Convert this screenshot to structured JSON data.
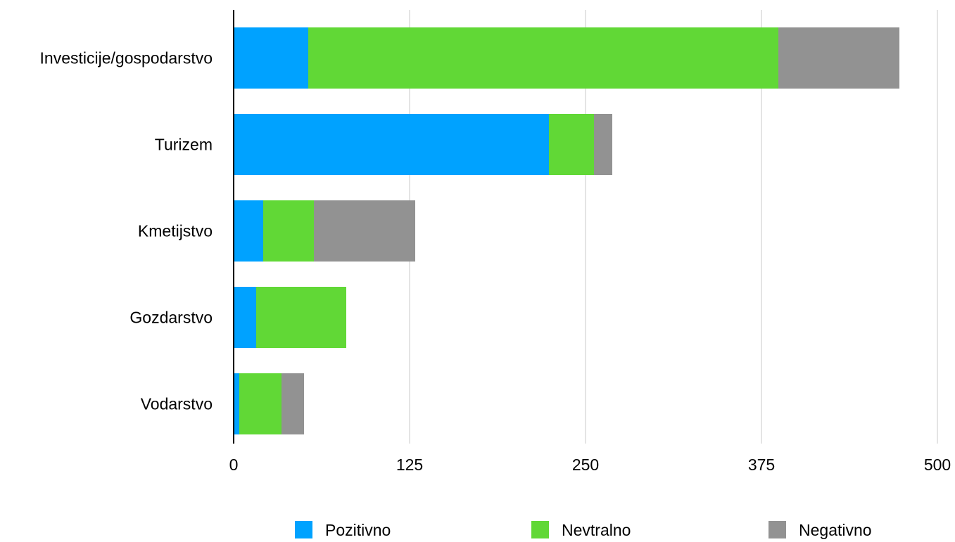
{
  "chart_data": {
    "type": "bar",
    "orientation": "horizontal",
    "stacked": true,
    "title": "",
    "xlabel": "",
    "ylabel": "",
    "categories": [
      "Investicije/gospodarstvo",
      "Turizem",
      "Kmetijstvo",
      "Gozdarstvo",
      "Vodarstvo"
    ],
    "series": [
      {
        "name": "Pozitivno",
        "color": "#00a2ff",
        "values": [
          53,
          224,
          21,
          16,
          4
        ]
      },
      {
        "name": "Nevtralno",
        "color": "#61d836",
        "values": [
          334,
          32,
          36,
          64,
          30
        ]
      },
      {
        "name": "Negativno",
        "color": "#929292",
        "values": [
          86,
          13,
          72,
          0,
          16
        ]
      }
    ],
    "xlim": [
      0,
      500
    ],
    "xticks": [
      "0",
      "125",
      "250",
      "375",
      "500"
    ],
    "xtick_values": [
      0,
      125,
      250,
      375,
      500
    ],
    "grid": "vertical",
    "legend_position": "bottom"
  }
}
